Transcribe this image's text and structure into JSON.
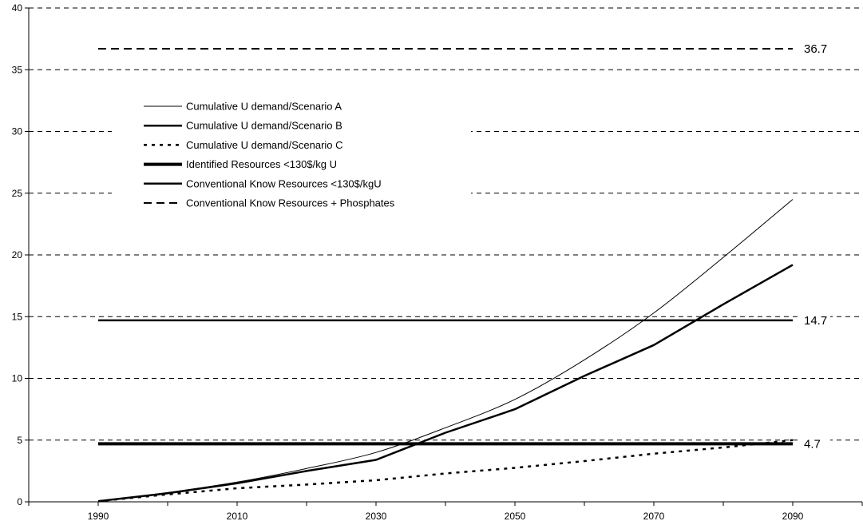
{
  "chart_data": {
    "type": "line",
    "x": [
      1990,
      2000,
      2010,
      2020,
      2030,
      2040,
      2050,
      2060,
      2070,
      2080,
      2090
    ],
    "x_ticks": [
      "1990",
      "2010",
      "2030",
      "2050",
      "2070",
      "2090"
    ],
    "y_ticks": [
      "0",
      "5",
      "10",
      "15",
      "20",
      "25",
      "30",
      "35",
      "40"
    ],
    "xlim": [
      1980,
      2100
    ],
    "ylim": [
      0,
      40
    ],
    "grid": "horizontal dashed",
    "legend_position": "upper-left",
    "series": [
      {
        "name": "Cumulative U demand/Scenario A",
        "style": "thin-solid",
        "values": [
          0.05,
          0.75,
          1.6,
          2.7,
          4.0,
          6.0,
          8.3,
          11.5,
          15.3,
          19.8,
          24.5
        ]
      },
      {
        "name": "Cumulative U demand/Scenario B",
        "style": "medium-solid",
        "values": [
          0.05,
          0.7,
          1.5,
          2.5,
          3.4,
          5.6,
          7.5,
          10.2,
          12.7,
          16.0,
          19.2
        ]
      },
      {
        "name": "Cumulative U demand/Scenario C",
        "style": "dotted",
        "values": [
          0.05,
          0.6,
          1.1,
          1.4,
          1.75,
          2.3,
          2.75,
          3.3,
          3.9,
          4.4,
          5.0
        ]
      },
      {
        "name": "Identified Resources <130$/kg U",
        "style": "thick-solid",
        "values": [
          4.7,
          4.7,
          4.7,
          4.7,
          4.7,
          4.7,
          4.7,
          4.7,
          4.7,
          4.7,
          4.7
        ]
      },
      {
        "name": "Conventional Know Resources <130$/kgU",
        "style": "medium-solid-flat",
        "values": [
          14.7,
          14.7,
          14.7,
          14.7,
          14.7,
          14.7,
          14.7,
          14.7,
          14.7,
          14.7,
          14.7
        ]
      },
      {
        "name": "Conventional Know Resources + Phosphates",
        "style": "dashed",
        "values": [
          36.7,
          36.7,
          36.7,
          36.7,
          36.7,
          36.7,
          36.7,
          36.7,
          36.7,
          36.7,
          36.7
        ]
      }
    ],
    "annotations": [
      {
        "text": "36.7",
        "y": 36.7
      },
      {
        "text": "14.7",
        "y": 14.7
      },
      {
        "text": "4.7",
        "y": 4.7
      }
    ]
  }
}
